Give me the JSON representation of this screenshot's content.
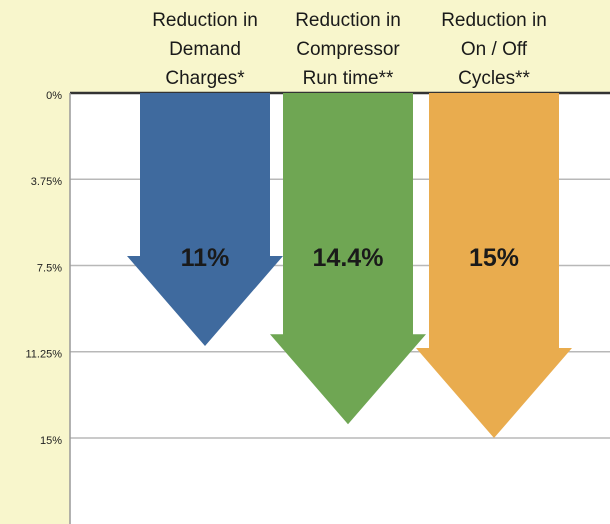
{
  "chart_data": {
    "type": "bar",
    "categories": [
      "Reduction in\nDemand\nCharges*",
      "Reduction in\nCompressor\nRun time**",
      "Reduction in\nOn / Off\nCycles**"
    ],
    "values": [
      11,
      14.4,
      15
    ],
    "value_labels": [
      "11%",
      "14.4%",
      "15%"
    ],
    "colors": [
      "#3f6a9e",
      "#6fa653",
      "#e9ac4e"
    ],
    "ylim": [
      0,
      15
    ],
    "yticks": [
      {
        "value": 0,
        "label": "0%"
      },
      {
        "value": 3.75,
        "label": "3.75%"
      },
      {
        "value": 7.5,
        "label": "7.5%"
      },
      {
        "value": 11.25,
        "label": "11.25%"
      },
      {
        "value": 15,
        "label": "15%"
      }
    ],
    "grid": true
  }
}
